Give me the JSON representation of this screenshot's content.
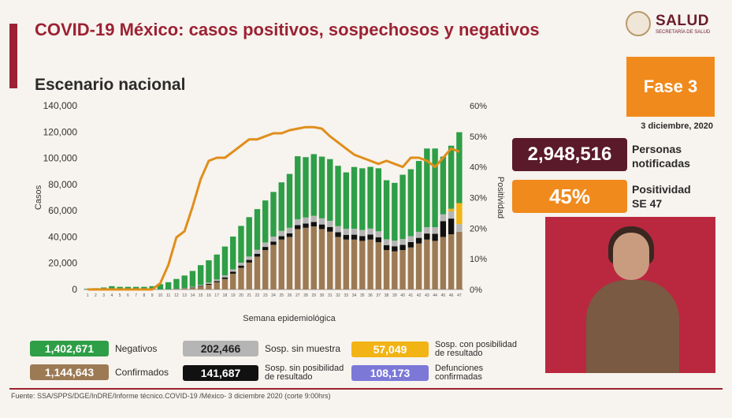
{
  "header": {
    "title": "COVID-19 México: casos positivos, sospechosos y negativos",
    "subtitle": "Escenario nacional",
    "logo_text": "SALUD",
    "logo_sub": "SECRETARÍA DE SALUD"
  },
  "phase": {
    "label": "Fase 3",
    "date": "3 diciembre, 2020"
  },
  "stats": {
    "notified_value": "2,948,516",
    "notified_label_1": "Personas",
    "notified_label_2": "notificadas",
    "positivity_value": "45%",
    "positivity_label_1": "Positividad",
    "positivity_label_2": "SE 47"
  },
  "legend": [
    {
      "value": "1,402,671",
      "label": "Negativos",
      "label2": "",
      "color": "#2e9e47"
    },
    {
      "value": "202,466",
      "label": "Sosp. sin muestra",
      "label2": "",
      "color": "#b5b5b5"
    },
    {
      "value": "57,049",
      "label": "Sosp. con posibilidad",
      "label2": "de resultado",
      "color": "#f2b315"
    },
    {
      "value": "1,144,643",
      "label": "Confirmados",
      "label2": "",
      "color": "#9c7a54"
    },
    {
      "value": "141,687",
      "label": "Sosp. sin posibilidad",
      "label2": "de resultado",
      "color": "#111111"
    },
    {
      "value": "108,173",
      "label": "Defunciones",
      "label2": "confirmadas",
      "color": "#7b78d8"
    }
  ],
  "footer": "Fuente: SSA/SPPS/DGE/InDRE/Informe técnico.COVID-19 /México- 3 diciembre 2020 (corte 9:00hrs)",
  "chart_data": {
    "type": "bar",
    "xlabel": "Semana epidemiológica",
    "ylabel": "Casos",
    "y2label": "Positividad",
    "ylim": [
      0,
      140000
    ],
    "y2lim": [
      0,
      60
    ],
    "y_ticks": [
      "0",
      "20,000",
      "40,000",
      "60,000",
      "80,000",
      "100,000",
      "120,000",
      "140,000"
    ],
    "y2_ticks": [
      "0%",
      "10%",
      "20%",
      "30%",
      "40%",
      "50%",
      "60%"
    ],
    "categories": [
      "1",
      "2",
      "3",
      "4",
      "5",
      "6",
      "7",
      "8",
      "9",
      "10",
      "11",
      "12",
      "13",
      "14",
      "15",
      "16",
      "17",
      "18",
      "19",
      "20",
      "21",
      "22",
      "23",
      "24",
      "25",
      "26",
      "27",
      "28",
      "29",
      "30",
      "31",
      "32",
      "33",
      "34",
      "35",
      "36",
      "37",
      "38",
      "39",
      "40",
      "41",
      "42",
      "43",
      "44",
      "45",
      "46",
      "47"
    ],
    "series": [
      {
        "name": "Confirmados",
        "color": "#9c7a54",
        "values": [
          0,
          0,
          0,
          0,
          0,
          0,
          0,
          0,
          0,
          0,
          0,
          200,
          600,
          1300,
          2300,
          3600,
          5500,
          8000,
          12000,
          16500,
          20500,
          25000,
          30000,
          34000,
          38000,
          40000,
          46000,
          47000,
          48000,
          46000,
          44000,
          40000,
          38000,
          38000,
          37000,
          38000,
          36000,
          30000,
          29000,
          30000,
          32000,
          35000,
          38000,
          37000,
          40000,
          42000,
          44000
        ]
      },
      {
        "name": "Sosp. sin posibilidad de resultado",
        "color": "#111111",
        "values": [
          0,
          0,
          0,
          0,
          0,
          0,
          0,
          0,
          0,
          0,
          0,
          100,
          200,
          300,
          500,
          700,
          900,
          1200,
          1500,
          1700,
          2000,
          2200,
          2400,
          2500,
          2600,
          2800,
          3000,
          3200,
          3400,
          3500,
          3600,
          3600,
          3600,
          3700,
          3700,
          3800,
          3800,
          3800,
          3900,
          4000,
          4100,
          4300,
          4600,
          5400,
          12000,
          12000,
          0
        ]
      },
      {
        "name": "Sosp. sin muestra",
        "color": "#b5b5b5",
        "values": [
          0,
          0,
          0,
          0,
          0,
          0,
          0,
          0,
          0,
          0,
          0,
          200,
          300,
          500,
          700,
          900,
          1200,
          1500,
          1800,
          2200,
          2600,
          3000,
          3400,
          3800,
          4000,
          4200,
          4500,
          4600,
          4700,
          4700,
          4700,
          4600,
          4600,
          4600,
          4600,
          4600,
          4500,
          4400,
          4300,
          4400,
          4500,
          4600,
          4800,
          5000,
          5200,
          5500,
          5800
        ]
      },
      {
        "name": "Sosp. con posibilidad de resultado",
        "color": "#f2b315",
        "values": [
          0,
          0,
          0,
          0,
          0,
          0,
          0,
          0,
          0,
          0,
          0,
          0,
          0,
          0,
          0,
          0,
          0,
          0,
          0,
          0,
          0,
          0,
          0,
          0,
          0,
          0,
          0,
          0,
          0,
          0,
          0,
          0,
          0,
          0,
          0,
          0,
          0,
          0,
          0,
          0,
          0,
          0,
          0,
          0,
          0,
          2000,
          16000
        ]
      },
      {
        "name": "Negativos",
        "color": "#2e9e47",
        "values": [
          500,
          1000,
          1500,
          2500,
          2000,
          2000,
          2000,
          2000,
          2500,
          4000,
          5500,
          7500,
          9500,
          12000,
          15000,
          17000,
          19000,
          22000,
          25000,
          28000,
          30000,
          31000,
          32000,
          34000,
          37000,
          41000,
          48000,
          46000,
          47000,
          47000,
          47000,
          46000,
          43000,
          47000,
          47000,
          47000,
          48000,
          45000,
          44000,
          49000,
          51000,
          54000,
          60000,
          60000,
          44000,
          48000,
          54000
        ]
      },
      {
        "name": "Positividad",
        "color": "#e08e1a",
        "axis": "y2",
        "values": [
          0,
          0,
          0,
          0,
          0,
          0,
          0,
          0,
          0,
          2,
          8,
          17,
          19,
          27,
          36,
          42,
          43,
          43,
          45,
          47,
          49,
          49,
          50,
          51,
          51,
          52,
          52.5,
          53,
          53,
          52.5,
          50,
          48,
          46,
          44,
          43,
          42,
          41,
          42,
          41,
          40,
          43,
          43,
          42,
          40,
          43,
          46,
          45
        ]
      }
    ]
  }
}
